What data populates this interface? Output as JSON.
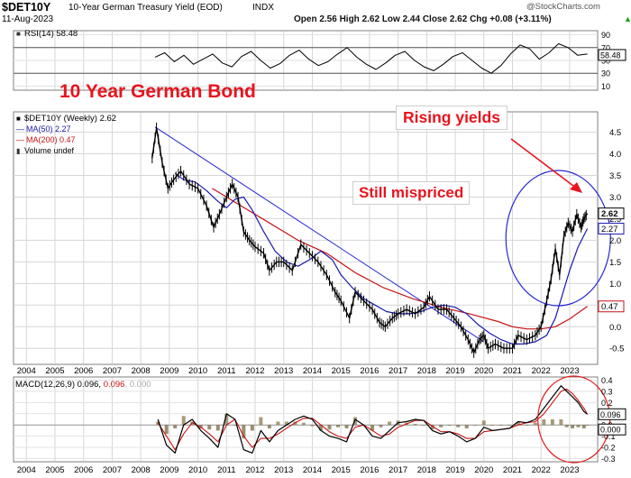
{
  "header": {
    "symbol": "$DET10Y",
    "name": "10-Year German Treasury Yield (EOD)",
    "exchange": "INDX",
    "date": "11-Aug-2023",
    "quote": "Open 2.56  High 2.62  Low 2.44  Close 2.62  Chg +0.08 (+3.11%)",
    "quote_arrow": "▲",
    "watermark": "@StockCharts.com"
  },
  "annotations": {
    "title": "10 Year German Bond",
    "rising": "Rising yields",
    "mispriced": "Still mispriced"
  },
  "colors": {
    "price": "#000000",
    "ma50": "#1a1ab0",
    "ma200": "#c81414",
    "annotation": "#e8141e",
    "circle_blue": "#2828d2",
    "circle_red": "#e01e1e",
    "hist_pos": "#8a7a4e",
    "hist_neg": "#7a6840"
  },
  "chart_data": [
    {
      "type": "line",
      "panel": "rsi",
      "legend": "RSI(14) 58.48",
      "yticks": [
        90,
        70,
        50,
        30,
        10
      ],
      "ylim": [
        5,
        95
      ],
      "reference_lines": [
        70,
        30
      ],
      "current_label": "58.48",
      "series": [
        {
          "values": [
            55,
            62,
            48,
            58,
            44,
            52,
            60,
            46,
            40,
            56,
            64,
            50,
            38,
            45,
            58,
            66,
            52,
            42,
            48,
            60,
            70,
            55,
            44,
            36,
            46,
            58,
            64,
            50,
            40,
            34,
            44,
            56,
            62,
            50,
            38,
            30,
            42,
            60,
            74,
            68,
            52,
            62,
            76,
            70,
            58,
            60
          ]
        }
      ]
    },
    {
      "type": "line",
      "panel": "price",
      "legend": {
        "price": "$DET10Y (Weekly) 2.62",
        "ma50": "MA(50) 2.27",
        "ma200": "MA(200) 0.47",
        "volume": "Volume undef"
      },
      "x_start": 2008.4,
      "x_end": 2023.62,
      "ylim": [
        -0.85,
        4.95
      ],
      "yticks": [
        4.5,
        4.0,
        3.5,
        3.0,
        2.5,
        2.0,
        1.5,
        1.0,
        0.5,
        0.0,
        -0.5
      ],
      "xticks": [
        "2004",
        "2005",
        "2006",
        "2007",
        "2008",
        "2009",
        "2010",
        "2011",
        "2012",
        "2013",
        "2014",
        "2015",
        "2016",
        "2017",
        "2018",
        "2019",
        "2020",
        "2021",
        "2022",
        "2023"
      ],
      "xtick_years": [
        2004,
        2005,
        2006,
        2007,
        2008,
        2009,
        2010,
        2011,
        2012,
        2013,
        2014,
        2015,
        2016,
        2017,
        2018,
        2019,
        2020,
        2021,
        2022,
        2023
      ],
      "price_labels": {
        "close": "2.62",
        "ma50": "2.27",
        "ma200": "0.47"
      },
      "series": [
        {
          "name": "$DET10Y (Weekly) 2.62",
          "x": [
            2008.4,
            2008.55,
            2008.75,
            2008.95,
            2009.15,
            2009.4,
            2009.7,
            2010.0,
            2010.3,
            2010.55,
            2010.75,
            2011.0,
            2011.2,
            2011.4,
            2011.6,
            2011.8,
            2012.0,
            2012.3,
            2012.5,
            2012.75,
            2013.0,
            2013.3,
            2013.6,
            2013.9,
            2014.2,
            2014.5,
            2014.8,
            2015.0,
            2015.3,
            2015.5,
            2015.8,
            2016.1,
            2016.35,
            2016.55,
            2016.8,
            2017.0,
            2017.3,
            2017.6,
            2017.9,
            2018.1,
            2018.4,
            2018.7,
            2018.95,
            2019.2,
            2019.45,
            2019.65,
            2019.85,
            2020.0,
            2020.15,
            2020.4,
            2020.7,
            2021.0,
            2021.2,
            2021.5,
            2021.8,
            2022.0,
            2022.2,
            2022.35,
            2022.5,
            2022.65,
            2022.8,
            2022.95,
            2023.1,
            2023.25,
            2023.4,
            2023.5,
            2023.62
          ],
          "values": [
            3.9,
            4.6,
            3.8,
            3.2,
            3.4,
            3.6,
            3.3,
            3.2,
            2.8,
            2.3,
            2.6,
            3.0,
            3.3,
            3.0,
            2.2,
            2.0,
            1.85,
            1.7,
            1.3,
            1.5,
            1.5,
            1.3,
            1.9,
            1.7,
            1.5,
            1.2,
            0.8,
            0.6,
            0.2,
            0.8,
            0.6,
            0.4,
            0.1,
            0.0,
            0.2,
            0.3,
            0.4,
            0.3,
            0.45,
            0.7,
            0.4,
            0.4,
            0.2,
            0.0,
            -0.3,
            -0.6,
            -0.3,
            -0.2,
            -0.5,
            -0.4,
            -0.5,
            -0.5,
            -0.2,
            -0.3,
            -0.2,
            0.0,
            0.6,
            1.1,
            1.8,
            1.2,
            2.1,
            2.4,
            2.2,
            2.6,
            2.3,
            2.5,
            2.62
          ]
        },
        {
          "name": "MA(50) 2.27",
          "x": [
            2009.2,
            2009.5,
            2009.9,
            2010.3,
            2010.7,
            2011.0,
            2011.3,
            2011.6,
            2011.9,
            2012.3,
            2012.7,
            2013.1,
            2013.5,
            2013.9,
            2014.3,
            2014.7,
            2015.0,
            2015.4,
            2015.8,
            2016.2,
            2016.6,
            2017.0,
            2017.4,
            2017.8,
            2018.2,
            2018.6,
            2019.0,
            2019.4,
            2019.8,
            2020.2,
            2020.6,
            2021.0,
            2021.4,
            2021.8,
            2022.2,
            2022.5,
            2022.75,
            2023.0,
            2023.3,
            2023.62
          ],
          "values": [
            3.55,
            3.4,
            3.35,
            3.15,
            2.9,
            2.75,
            2.95,
            3.0,
            2.7,
            2.2,
            1.75,
            1.5,
            1.4,
            1.55,
            1.75,
            1.55,
            1.2,
            0.9,
            0.65,
            0.5,
            0.35,
            0.3,
            0.3,
            0.35,
            0.45,
            0.5,
            0.45,
            0.3,
            0.05,
            -0.15,
            -0.3,
            -0.4,
            -0.4,
            -0.35,
            -0.2,
            0.2,
            0.75,
            1.3,
            1.85,
            2.27
          ]
        },
        {
          "name": "MA(200) 0.47",
          "x": [
            2010.5,
            2011.5,
            2012.5,
            2013.5,
            2014.5,
            2015.5,
            2016.5,
            2017.5,
            2018.5,
            2019.5,
            2020.5,
            2021.0,
            2021.5,
            2022.0,
            2022.5,
            2023.0,
            2023.3,
            2023.62
          ],
          "values": [
            3.2,
            2.8,
            2.4,
            2.0,
            1.7,
            1.25,
            0.9,
            0.65,
            0.45,
            0.3,
            0.12,
            0.0,
            -0.05,
            -0.05,
            0.0,
            0.18,
            0.32,
            0.47
          ]
        }
      ],
      "trendline": {
        "x": [
          2008.5,
          2020.0
        ],
        "values": [
          4.62,
          -0.35
        ]
      }
    },
    {
      "type": "line",
      "panel": "macd",
      "legend": "MACD(12,26,9) 0.096, 0.096, 0.000",
      "legend_parts": [
        "MACD(12,26,9) 0.096, ",
        "0.096",
        ", 0.000"
      ],
      "ylim": [
        -0.32,
        0.42
      ],
      "yticks": [
        0.4,
        0.3,
        0.2,
        0.1,
        0.0,
        -0.1,
        -0.2,
        -0.3
      ],
      "yticklabels": [
        "0.4",
        "0.3",
        "0.2",
        "0.1",
        "0.0",
        "-0.1",
        "-0.2",
        "-0.3"
      ],
      "current_labels": {
        "macd": "0.096",
        "histogram": "0.000"
      },
      "x": [
        2008.6,
        2008.9,
        2009.2,
        2009.5,
        2009.8,
        2010.1,
        2010.4,
        2010.7,
        2011.0,
        2011.3,
        2011.6,
        2011.9,
        2012.2,
        2012.5,
        2012.8,
        2013.1,
        2013.4,
        2013.7,
        2014.0,
        2014.3,
        2014.6,
        2014.9,
        2015.2,
        2015.5,
        2015.8,
        2016.1,
        2016.4,
        2016.7,
        2017.0,
        2017.3,
        2017.6,
        2017.9,
        2018.2,
        2018.5,
        2018.8,
        2019.1,
        2019.4,
        2019.7,
        2020.0,
        2020.3,
        2020.6,
        2020.9,
        2021.2,
        2021.5,
        2021.8,
        2022.1,
        2022.4,
        2022.7,
        2022.9,
        2023.1,
        2023.3,
        2023.5,
        2023.62
      ],
      "series": [
        {
          "values": [
            0.05,
            -0.18,
            -0.25,
            0.0,
            0.05,
            -0.05,
            -0.12,
            -0.2,
            0.1,
            0.05,
            -0.22,
            -0.25,
            -0.05,
            -0.15,
            -0.05,
            0.0,
            0.05,
            0.08,
            0.05,
            -0.05,
            -0.1,
            -0.12,
            -0.15,
            0.05,
            0.0,
            -0.1,
            -0.12,
            -0.05,
            0.02,
            0.03,
            0.05,
            0.04,
            -0.05,
            -0.08,
            -0.06,
            -0.1,
            -0.15,
            -0.12,
            -0.02,
            -0.05,
            -0.04,
            -0.03,
            0.03,
            0.02,
            0.05,
            0.15,
            0.25,
            0.35,
            0.3,
            0.25,
            0.2,
            0.12,
            0.096
          ]
        },
        {
          "values": [
            0.02,
            -0.1,
            -0.22,
            -0.08,
            0.02,
            -0.02,
            -0.08,
            -0.15,
            0.0,
            0.05,
            -0.1,
            -0.2,
            -0.12,
            -0.12,
            -0.08,
            -0.03,
            0.02,
            0.06,
            0.06,
            0.0,
            -0.06,
            -0.1,
            -0.12,
            -0.02,
            0.0,
            -0.05,
            -0.1,
            -0.08,
            -0.02,
            0.01,
            0.04,
            0.04,
            -0.01,
            -0.06,
            -0.06,
            -0.08,
            -0.12,
            -0.12,
            -0.06,
            -0.05,
            -0.04,
            -0.03,
            0.0,
            0.02,
            0.03,
            0.1,
            0.2,
            0.3,
            0.32,
            0.28,
            0.22,
            0.15,
            0.096
          ]
        }
      ]
    }
  ]
}
